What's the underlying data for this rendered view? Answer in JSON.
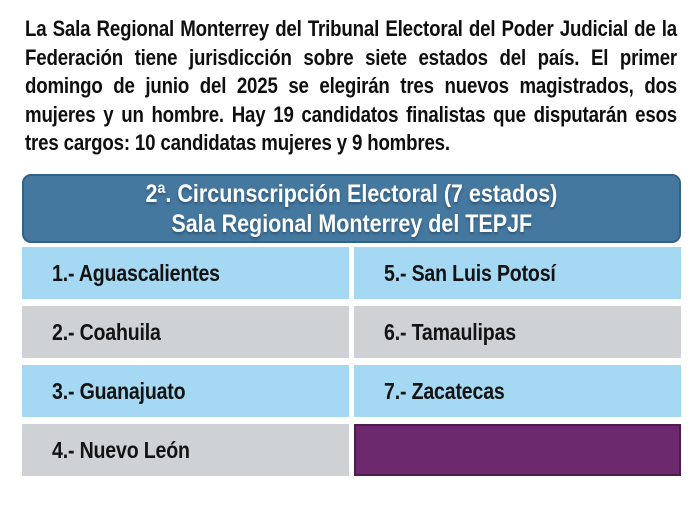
{
  "intro": {
    "text": "La Sala Regional Monterrey del Tribunal Electoral del Poder Judicial de la Federación tiene jurisdicción sobre siete estados del país. El primer domingo de junio del 2025 se elegirán tres nuevos magistrados, dos mujeres y un hombre. Hay 19 candidatos finalistas que disputarán esos tres cargos: 10 candidatas mujeres y 9 hombres."
  },
  "table": {
    "header": {
      "line1": "2ª. Circunscripción Electoral (7 estados)",
      "line2": "Sala Regional Monterrey del TEPJF"
    },
    "rows": [
      {
        "left": "1.- Aguascalientes",
        "right": "5.- San Luis Potosí"
      },
      {
        "left": "2.- Coahuila",
        "right": "6.- Tamaulipas"
      },
      {
        "left": "3.- Guanajuato",
        "right": "7.- Zacatecas"
      },
      {
        "left": "4.- Nuevo León",
        "right": ""
      }
    ],
    "colors": {
      "header_bg": "#45789f",
      "header_border": "#2f6389",
      "header_text": "#ffffff",
      "row_blue": "#a5d8f2",
      "row_gray": "#ced2d5",
      "empty_cell_purple": "#6d296d",
      "purple_border": "#4e1c4e",
      "body_text": "#0f0f0f"
    }
  }
}
